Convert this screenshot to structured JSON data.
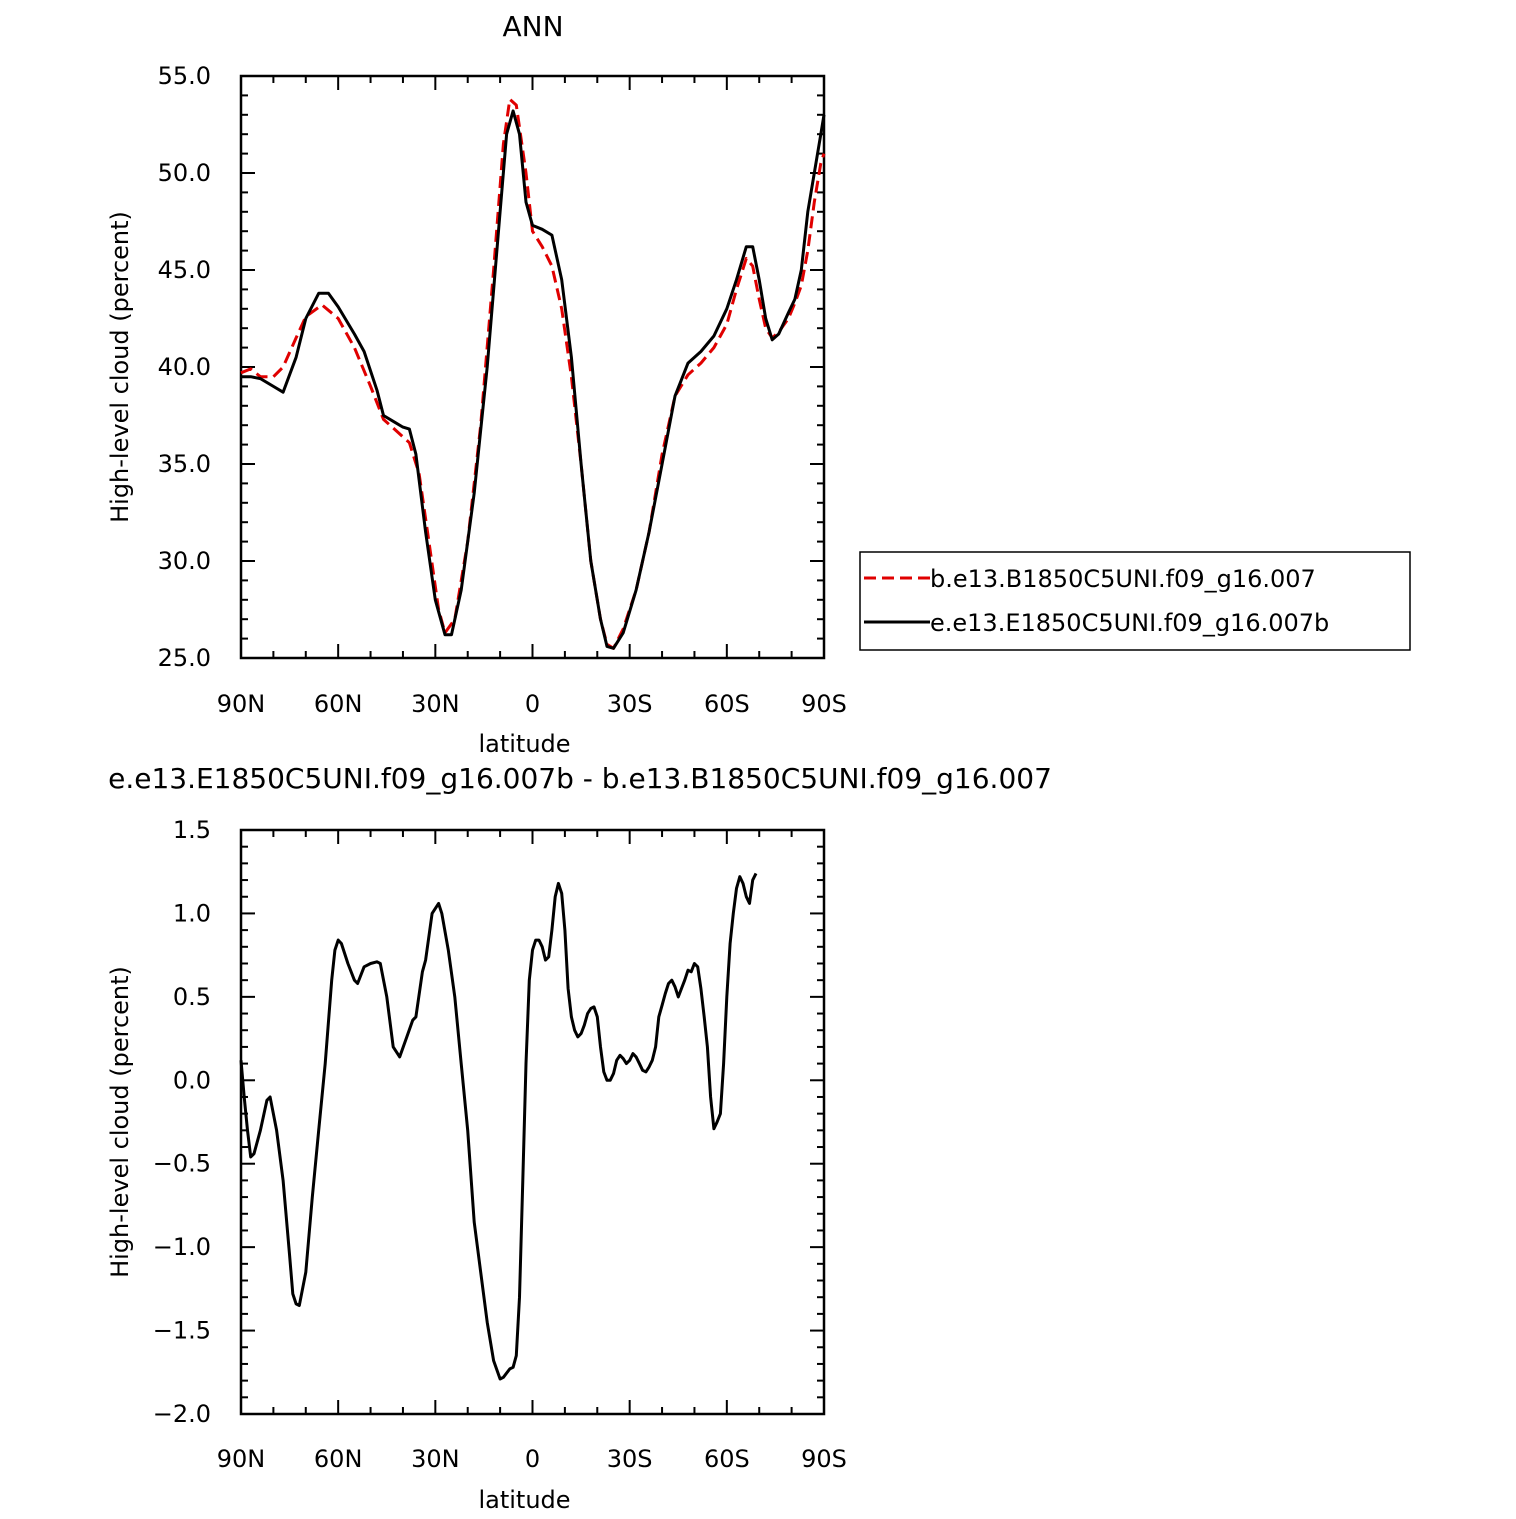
{
  "chart_data": [
    {
      "type": "line",
      "title": "ANN",
      "xlabel": "latitude",
      "ylabel": "High-level cloud (percent)",
      "xlim": [
        90,
        -90
      ],
      "ylim": [
        25.0,
        55.0
      ],
      "x_ticks": [
        {
          "value": 90,
          "label": "90N"
        },
        {
          "value": 60,
          "label": "60N"
        },
        {
          "value": 30,
          "label": "30N"
        },
        {
          "value": 0,
          "label": "0"
        },
        {
          "value": -30,
          "label": "30S"
        },
        {
          "value": -60,
          "label": "60S"
        },
        {
          "value": -90,
          "label": "90S"
        }
      ],
      "y_ticks": [
        {
          "value": 55.0,
          "label": "55.0"
        },
        {
          "value": 50.0,
          "label": "50.0"
        },
        {
          "value": 45.0,
          "label": "45.0"
        },
        {
          "value": 40.0,
          "label": "40.0"
        },
        {
          "value": 35.0,
          "label": "35.0"
        },
        {
          "value": 30.0,
          "label": "30.0"
        },
        {
          "value": 25.0,
          "label": "25.0"
        }
      ],
      "legend_position": "right",
      "series": [
        {
          "name": "b.e13.B1850C5UNI.f09_g16.007",
          "color": "#e00000",
          "dash": "dashed",
          "points": [
            [
              90,
              39.7
            ],
            [
              87,
              39.9
            ],
            [
              84,
              39.5
            ],
            [
              80,
              39.5
            ],
            [
              77,
              40
            ],
            [
              73,
              41.5
            ],
            [
              70,
              42.6
            ],
            [
              65,
              43.2
            ],
            [
              60,
              42.5
            ],
            [
              55,
              41
            ],
            [
              50,
              39
            ],
            [
              46,
              37.3
            ],
            [
              42,
              36.7
            ],
            [
              38,
              36.1
            ],
            [
              35,
              34.5
            ],
            [
              32,
              31
            ],
            [
              29,
              27.5
            ],
            [
              27,
              26.3
            ],
            [
              24,
              27
            ],
            [
              20,
              31
            ],
            [
              16,
              37
            ],
            [
              12,
              45
            ],
            [
              9,
              51.5
            ],
            [
              7,
              53.8
            ],
            [
              5,
              53.5
            ],
            [
              2,
              50
            ],
            [
              0,
              47
            ],
            [
              -3,
              46.2
            ],
            [
              -6,
              45.2
            ],
            [
              -9,
              43
            ],
            [
              -12,
              39.5
            ],
            [
              -15,
              35
            ],
            [
              -18,
              30
            ],
            [
              -21,
              27
            ],
            [
              -23,
              25.7
            ],
            [
              -25,
              25.5
            ],
            [
              -28,
              26.5
            ],
            [
              -32,
              28.5
            ],
            [
              -36,
              31.5
            ],
            [
              -40,
              35.5
            ],
            [
              -44,
              38.5
            ],
            [
              -48,
              39.6
            ],
            [
              -52,
              40.2
            ],
            [
              -56,
              41
            ],
            [
              -60,
              42.2
            ],
            [
              -63,
              44
            ],
            [
              -66,
              45.6
            ],
            [
              -68,
              45.2
            ],
            [
              -70,
              43.5
            ],
            [
              -72,
              42
            ],
            [
              -74,
              41.5
            ],
            [
              -76,
              41.8
            ],
            [
              -79,
              42.5
            ],
            [
              -81,
              43.3
            ],
            [
              -83,
              44.2
            ],
            [
              -85,
              46
            ],
            [
              -87,
              48.5
            ],
            [
              -89,
              50.5
            ],
            [
              -90,
              51
            ]
          ]
        },
        {
          "name": "e.e13.E1850C5UNI.f09_g16.007b",
          "color": "#000000",
          "dash": "solid",
          "points": [
            [
              90,
              39.5
            ],
            [
              87,
              39.5
            ],
            [
              84,
              39.4
            ],
            [
              80,
              39
            ],
            [
              77,
              38.7
            ],
            [
              73,
              40.5
            ],
            [
              70,
              42.5
            ],
            [
              66,
              43.8
            ],
            [
              63,
              43.8
            ],
            [
              60,
              43.1
            ],
            [
              55,
              41.7
            ],
            [
              52,
              40.8
            ],
            [
              48,
              38.8
            ],
            [
              46,
              37.5
            ],
            [
              43,
              37.2
            ],
            [
              40,
              36.9
            ],
            [
              38,
              36.8
            ],
            [
              36,
              35.5
            ],
            [
              33,
              31.5
            ],
            [
              30,
              28
            ],
            [
              27,
              26.2
            ],
            [
              25,
              26.2
            ],
            [
              22,
              28.5
            ],
            [
              18,
              33.5
            ],
            [
              14,
              40
            ],
            [
              10,
              48
            ],
            [
              8,
              52
            ],
            [
              6,
              53.2
            ],
            [
              4,
              52
            ],
            [
              2,
              48.5
            ],
            [
              0,
              47.3
            ],
            [
              -3,
              47.1
            ],
            [
              -6,
              46.8
            ],
            [
              -9,
              44.5
            ],
            [
              -12,
              40.5
            ],
            [
              -15,
              35
            ],
            [
              -18,
              30
            ],
            [
              -21,
              27
            ],
            [
              -23,
              25.6
            ],
            [
              -25,
              25.5
            ],
            [
              -28,
              26.3
            ],
            [
              -32,
              28.5
            ],
            [
              -36,
              31.5
            ],
            [
              -40,
              35
            ],
            [
              -44,
              38.5
            ],
            [
              -48,
              40.2
            ],
            [
              -52,
              40.8
            ],
            [
              -56,
              41.6
            ],
            [
              -60,
              43
            ],
            [
              -63,
              44.5
            ],
            [
              -66,
              46.2
            ],
            [
              -68,
              46.2
            ],
            [
              -70,
              44.5
            ],
            [
              -72,
              42.5
            ],
            [
              -74,
              41.4
            ],
            [
              -76,
              41.7
            ],
            [
              -79,
              42.8
            ],
            [
              -81,
              43.5
            ],
            [
              -83,
              45
            ],
            [
              -85,
              48
            ],
            [
              -87,
              50
            ],
            [
              -89,
              52
            ],
            [
              -90,
              53
            ]
          ]
        }
      ]
    },
    {
      "type": "line",
      "title": "e.e13.E1850C5UNI.f09_g16.007b - b.e13.B1850C5UNI.f09_g16.007",
      "xlabel": "latitude",
      "ylabel": "High-level cloud (percent)",
      "xlim": [
        90,
        -90
      ],
      "ylim": [
        -2.0,
        1.5
      ],
      "x_ticks": [
        {
          "value": 90,
          "label": "90N"
        },
        {
          "value": 60,
          "label": "60N"
        },
        {
          "value": 30,
          "label": "30N"
        },
        {
          "value": 0,
          "label": "0"
        },
        {
          "value": -30,
          "label": "30S"
        },
        {
          "value": -60,
          "label": "60S"
        },
        {
          "value": -90,
          "label": "90S"
        }
      ],
      "y_ticks": [
        {
          "value": 1.5,
          "label": "1.5"
        },
        {
          "value": 1.0,
          "label": "1.0"
        },
        {
          "value": 0.5,
          "label": "0.5"
        },
        {
          "value": 0.0,
          "label": "0.0"
        },
        {
          "value": -0.5,
          "label": "−0.5"
        },
        {
          "value": -1.0,
          "label": "−1.0"
        },
        {
          "value": -1.5,
          "label": "−1.5"
        },
        {
          "value": -2.0,
          "label": "−2.0"
        }
      ],
      "series": [
        {
          "color": "#000000",
          "dash": "solid",
          "points": [
            [
              90,
              0.12
            ],
            [
              89,
              -0.1
            ],
            [
              88,
              -0.3
            ],
            [
              87,
              -0.46
            ],
            [
              86,
              -0.44
            ],
            [
              84,
              -0.3
            ],
            [
              82,
              -0.12
            ],
            [
              81,
              -0.1
            ],
            [
              79,
              -0.3
            ],
            [
              77,
              -0.6
            ],
            [
              75,
              -1.05
            ],
            [
              74,
              -1.28
            ],
            [
              73,
              -1.34
            ],
            [
              72,
              -1.35
            ],
            [
              70,
              -1.15
            ],
            [
              68,
              -0.7
            ],
            [
              66,
              -0.3
            ],
            [
              64,
              0.1
            ],
            [
              62,
              0.6
            ],
            [
              61,
              0.78
            ],
            [
              60,
              0.84
            ],
            [
              59,
              0.82
            ],
            [
              57,
              0.7
            ],
            [
              55,
              0.6
            ],
            [
              54,
              0.58
            ],
            [
              52,
              0.68
            ],
            [
              50,
              0.7
            ],
            [
              48,
              0.71
            ],
            [
              47,
              0.7
            ],
            [
              45,
              0.5
            ],
            [
              43,
              0.2
            ],
            [
              41,
              0.14
            ],
            [
              39,
              0.25
            ],
            [
              37,
              0.36
            ],
            [
              36,
              0.38
            ],
            [
              34,
              0.65
            ],
            [
              33,
              0.72
            ],
            [
              31,
              1.0
            ],
            [
              29,
              1.06
            ],
            [
              28,
              1.0
            ],
            [
              26,
              0.78
            ],
            [
              24,
              0.5
            ],
            [
              22,
              0.1
            ],
            [
              20,
              -0.3
            ],
            [
              18,
              -0.85
            ],
            [
              16,
              -1.15
            ],
            [
              14,
              -1.45
            ],
            [
              12,
              -1.68
            ],
            [
              10,
              -1.79
            ],
            [
              9,
              -1.78
            ],
            [
              7,
              -1.73
            ],
            [
              6,
              -1.72
            ],
            [
              5,
              -1.65
            ],
            [
              4,
              -1.3
            ],
            [
              3,
              -0.6
            ],
            [
              2,
              0.1
            ],
            [
              1,
              0.6
            ],
            [
              0,
              0.78
            ],
            [
              -1,
              0.84
            ],
            [
              -2,
              0.84
            ],
            [
              -3,
              0.8
            ],
            [
              -4,
              0.72
            ],
            [
              -5,
              0.74
            ],
            [
              -6,
              0.9
            ],
            [
              -7,
              1.1
            ],
            [
              -8,
              1.18
            ],
            [
              -9,
              1.12
            ],
            [
              -10,
              0.9
            ],
            [
              -11,
              0.55
            ],
            [
              -12,
              0.38
            ],
            [
              -13,
              0.3
            ],
            [
              -14,
              0.26
            ],
            [
              -15,
              0.28
            ],
            [
              -16,
              0.33
            ],
            [
              -17,
              0.4
            ],
            [
              -18,
              0.43
            ],
            [
              -19,
              0.44
            ],
            [
              -20,
              0.38
            ],
            [
              -21,
              0.2
            ],
            [
              -22,
              0.05
            ],
            [
              -23,
              0.0
            ],
            [
              -24,
              0.0
            ],
            [
              -25,
              0.04
            ],
            [
              -26,
              0.12
            ],
            [
              -27,
              0.15
            ],
            [
              -28,
              0.13
            ],
            [
              -29,
              0.1
            ],
            [
              -30,
              0.12
            ],
            [
              -31,
              0.16
            ],
            [
              -32,
              0.14
            ],
            [
              -33,
              0.1
            ],
            [
              -34,
              0.06
            ],
            [
              -35,
              0.05
            ],
            [
              -36,
              0.08
            ],
            [
              -37,
              0.12
            ],
            [
              -38,
              0.2
            ],
            [
              -39,
              0.38
            ],
            [
              -40,
              0.45
            ],
            [
              -41,
              0.52
            ],
            [
              -42,
              0.58
            ],
            [
              -43,
              0.6
            ],
            [
              -44,
              0.56
            ],
            [
              -45,
              0.5
            ],
            [
              -46,
              0.55
            ],
            [
              -47,
              0.6
            ],
            [
              -48,
              0.66
            ],
            [
              -49,
              0.65
            ],
            [
              -50,
              0.7
            ],
            [
              -51,
              0.68
            ],
            [
              -52,
              0.55
            ],
            [
              -53,
              0.38
            ],
            [
              -54,
              0.2
            ],
            [
              -55,
              -0.1
            ],
            [
              -56,
              -0.29
            ],
            [
              -57,
              -0.25
            ],
            [
              -58,
              -0.2
            ],
            [
              -59,
              0.1
            ],
            [
              -60,
              0.5
            ],
            [
              -61,
              0.82
            ],
            [
              -62,
              1.0
            ],
            [
              -63,
              1.15
            ],
            [
              -64,
              1.22
            ],
            [
              -65,
              1.18
            ],
            [
              -66,
              1.1
            ],
            [
              -67,
              1.06
            ],
            [
              -68,
              1.2
            ],
            [
              -69,
              1.24
            ]
          ]
        }
      ]
    }
  ]
}
